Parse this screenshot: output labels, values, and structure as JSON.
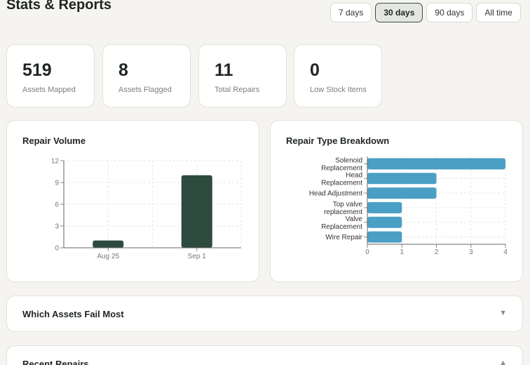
{
  "header": {
    "title": "Stats & Reports"
  },
  "range_buttons": [
    {
      "label": "7 days",
      "active": false
    },
    {
      "label": "30 days",
      "active": true
    },
    {
      "label": "90 days",
      "active": false
    },
    {
      "label": "All time",
      "active": false
    }
  ],
  "stats": [
    {
      "value": "519",
      "label": "Assets Mapped"
    },
    {
      "value": "8",
      "label": "Assets Flagged"
    },
    {
      "value": "11",
      "label": "Total Repairs"
    },
    {
      "value": "0",
      "label": "Low Stock Items"
    }
  ],
  "repair_volume": {
    "title": "Repair Volume"
  },
  "repair_breakdown": {
    "title": "Repair Type Breakdown"
  },
  "sections": {
    "fail_most": {
      "title": "Which Assets Fail Most",
      "icon": "chevron-down-icon",
      "chevron": "▼"
    },
    "recent_repairs": {
      "title": "Recent Repairs",
      "icon": "chevron-up-icon",
      "chevron": "▲"
    }
  },
  "colors": {
    "volume_bar": "#2d4a3e",
    "breakdown_bar": "#4a9fc4",
    "active_border": "#3e4a42"
  },
  "chart_data": [
    {
      "type": "bar",
      "title": "Repair Volume",
      "categories": [
        "Aug 25",
        "Sep 1"
      ],
      "values": [
        1,
        10
      ],
      "ylim": [
        0,
        12
      ],
      "yticks": [
        0,
        3,
        6,
        9,
        12
      ],
      "grid": true
    },
    {
      "type": "bar",
      "orientation": "horizontal",
      "title": "Repair Type Breakdown",
      "categories": [
        [
          "Solenoid",
          "Replacement"
        ],
        [
          "Head",
          "Replacement"
        ],
        [
          "Head Adjustment"
        ],
        [
          "Top valve",
          "replacement"
        ],
        [
          "Valve",
          "Replacement"
        ],
        [
          "Wire Repair"
        ]
      ],
      "values": [
        4,
        2,
        2,
        1,
        1,
        1
      ],
      "xlim": [
        0,
        4
      ],
      "xticks": [
        0,
        1,
        2,
        3,
        4
      ],
      "grid": true
    }
  ]
}
